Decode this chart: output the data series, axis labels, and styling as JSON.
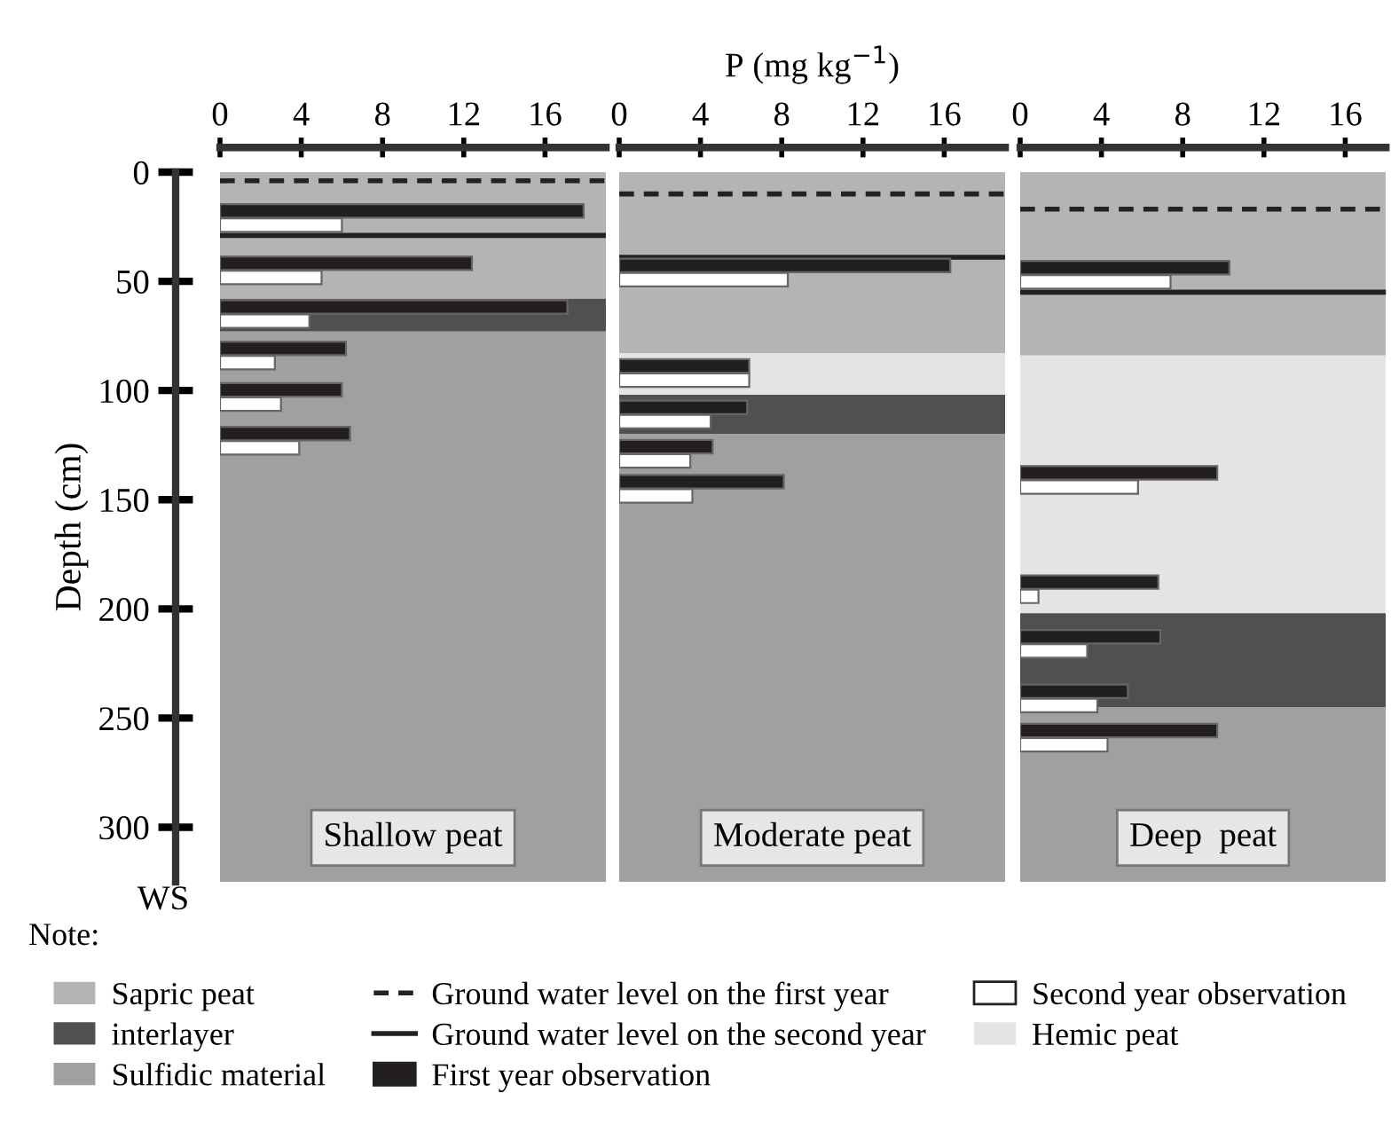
{
  "chart_data": [
    {
      "type": "bar",
      "orientation": "horizontal",
      "title": "Shallow peat",
      "ylabel": "Depth (cm)",
      "annotations": [
        "WS",
        "Note:"
      ],
      "x": [
        21,
        45,
        65,
        84,
        103,
        123
      ],
      "series": [
        {
          "name": "First year observation",
          "color": "#231f20",
          "values": [
            17.9,
            12.4,
            17.1,
            6.2,
            6.0,
            6.4
          ]
        },
        {
          "name": "Second year observation",
          "color": "#ffffff",
          "values": [
            6.0,
            5.0,
            4.4,
            2.7,
            3.0,
            3.9
          ]
        }
      ],
      "xlim": [
        0,
        19
      ],
      "xticks": [
        0,
        4,
        8,
        12,
        16
      ],
      "ylim": [
        325,
        0
      ],
      "yticks": [
        0,
        50,
        100,
        150,
        200,
        250,
        300
      ],
      "bands": [
        {
          "axis": "y",
          "from": 0,
          "to": 58,
          "label": "Sapric peat",
          "color": "#b4b4b4"
        },
        {
          "axis": "y",
          "from": 58,
          "to": 73,
          "label": "interlayer",
          "color": "#505050"
        },
        {
          "axis": "y",
          "from": 73,
          "to": 325,
          "label": "Sulfidic material",
          "color": "#a0a0a0"
        }
      ],
      "ref_lines": [
        {
          "axis": "y",
          "value": 4,
          "label": "Ground water level on the first year",
          "line_style": "dashed"
        },
        {
          "axis": "y",
          "value": 29,
          "label": "Ground water level on the second year",
          "line_style": "solid"
        }
      ],
      "legend": "bottom"
    },
    {
      "type": "bar",
      "orientation": "horizontal",
      "title": "Moderate peat",
      "xlabel": "P (mg kg$^{−1}$)",
      "x": [
        46,
        92,
        111,
        129,
        145
      ],
      "series": [
        {
          "color": "#231f20",
          "values": [
            16.3,
            6.4,
            6.3,
            4.6,
            8.1
          ]
        },
        {
          "color": "#ffffff",
          "values": [
            8.3,
            6.4,
            4.5,
            3.5,
            3.6
          ]
        }
      ],
      "xlim": [
        0,
        19
      ],
      "xticks": [
        0,
        4,
        8,
        12,
        16
      ],
      "ylim": [
        325,
        0
      ],
      "tick_labels": "x",
      "bands": [
        {
          "axis": "y",
          "from": 0,
          "to": 83,
          "color": "#b4b4b4"
        },
        {
          "axis": "y",
          "from": 83,
          "to": 102,
          "label": "Hemic peat",
          "color": "#e4e4e4"
        },
        {
          "axis": "y",
          "from": 102,
          "to": 120,
          "color": "#505050"
        },
        {
          "axis": "y",
          "from": 120,
          "to": 325,
          "color": "#a0a0a0"
        }
      ],
      "ref_lines": [
        {
          "axis": "y",
          "value": 10,
          "line_style": "dashed"
        },
        {
          "axis": "y",
          "value": 39,
          "line_style": "solid"
        }
      ]
    },
    {
      "type": "bar",
      "orientation": "horizontal",
      "title": "Deep  peat",
      "x": [
        47,
        141,
        191,
        216,
        241,
        259
      ],
      "series": [
        {
          "color": "#231f20",
          "values": [
            10.3,
            9.7,
            6.8,
            6.9,
            5.3,
            9.7
          ]
        },
        {
          "color": "#ffffff",
          "values": [
            7.4,
            5.8,
            0.9,
            3.3,
            3.8,
            4.3
          ]
        }
      ],
      "xlim": [
        0,
        18
      ],
      "xticks": [
        0,
        4,
        8,
        12,
        16
      ],
      "ylim": [
        325,
        0
      ],
      "tick_labels": "x",
      "bands": [
        {
          "axis": "y",
          "from": 0,
          "to": 84,
          "color": "#b4b4b4"
        },
        {
          "axis": "y",
          "from": 84,
          "to": 202,
          "color": "#e4e4e4"
        },
        {
          "axis": "y",
          "from": 202,
          "to": 245,
          "color": "#505050"
        },
        {
          "axis": "y",
          "from": 245,
          "to": 325,
          "color": "#a0a0a0"
        }
      ],
      "ref_lines": [
        {
          "axis": "y",
          "value": 17,
          "line_style": "dashed"
        },
        {
          "axis": "y",
          "value": 55,
          "line_style": "solid"
        }
      ]
    }
  ]
}
